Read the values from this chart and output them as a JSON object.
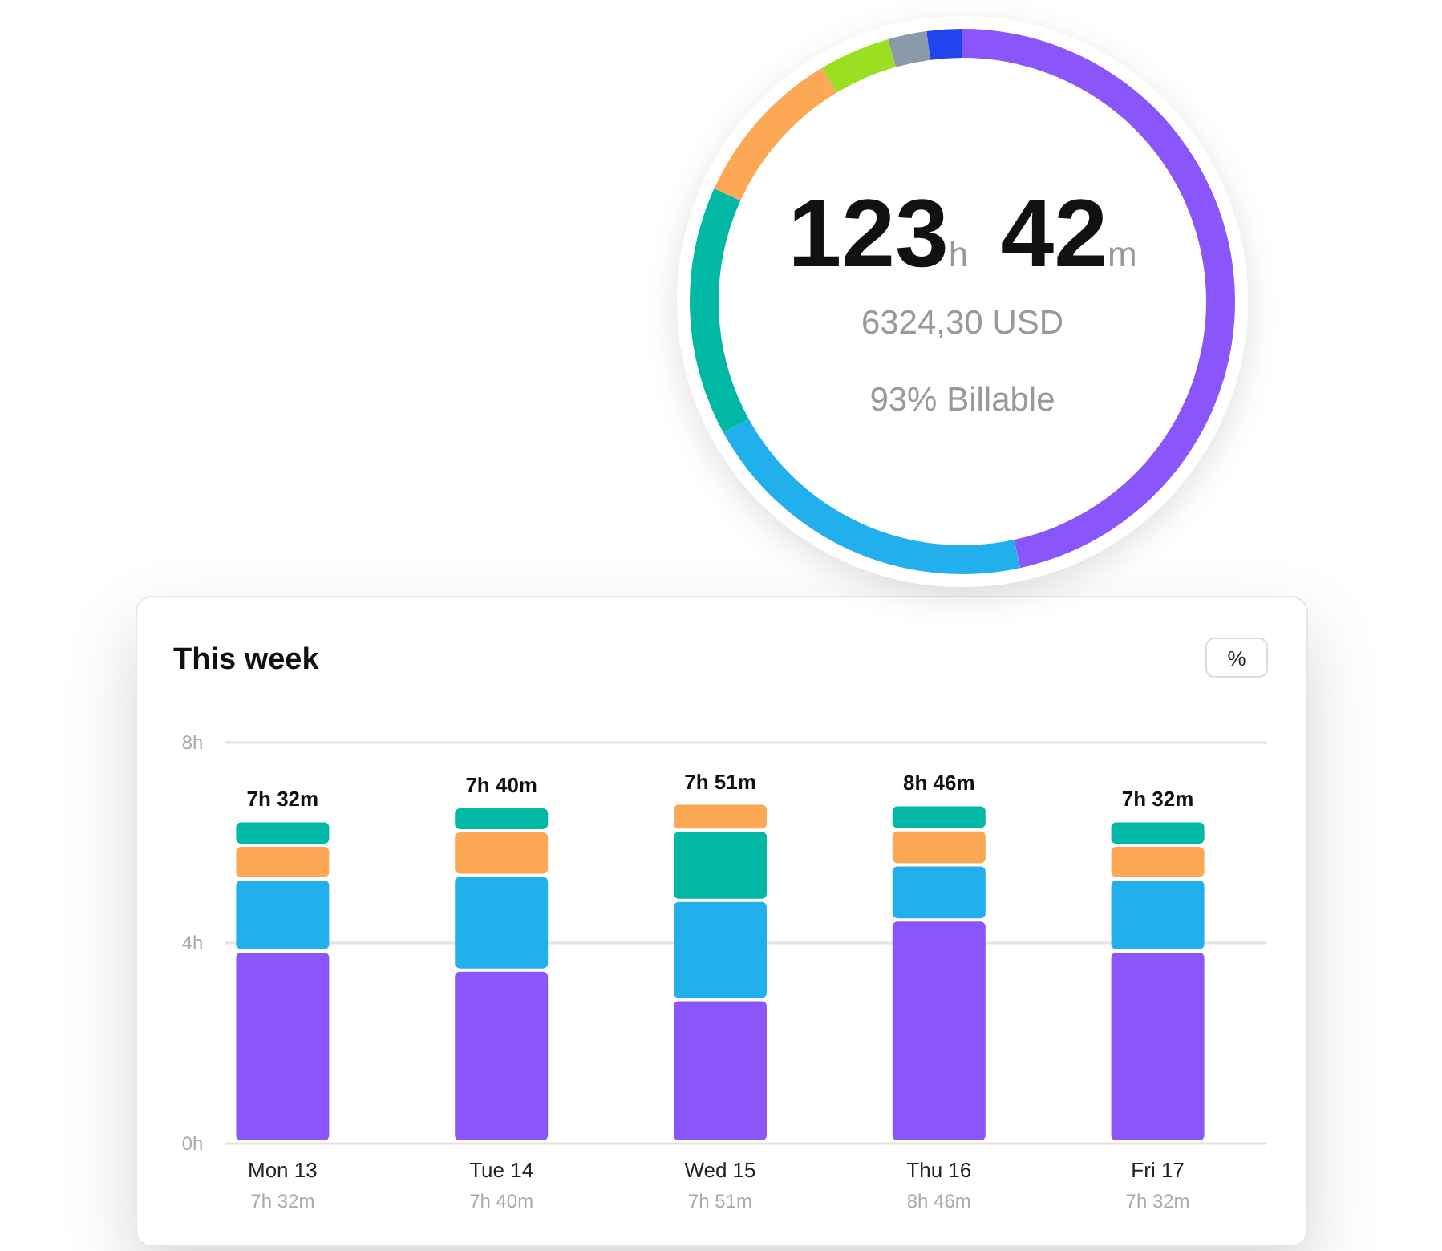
{
  "chart_data": [
    {
      "type": "donut",
      "title": "123h 42m",
      "subtitle": "6324,30 USD",
      "annotations": [
        "93% Billable"
      ],
      "categories": [
        null,
        null,
        null,
        null,
        null,
        null,
        null
      ],
      "values": [
        46.6,
        20.4,
        14.8,
        9.6,
        4.2,
        2.3,
        2.1
      ],
      "colors": [
        "#8b55fc",
        "#22b0ec",
        "#00b8a4",
        "#fca854",
        "#9adf22",
        "#8a9aa8",
        "#2244ee"
      ]
    },
    {
      "type": "bar",
      "title": "This week",
      "stacked": true,
      "categories": [
        "Mon 13",
        "Tue 14",
        "Wed 15",
        "Thu 16",
        "Fri 17"
      ],
      "series": [
        {
          "color": "#8b55fc",
          "values": [
            3.81,
            3.43,
            2.84,
            4.43,
            3.81
          ]
        },
        {
          "color": "#22b0ec",
          "values": [
            1.44,
            1.89,
            1.98,
            1.1,
            1.44
          ]
        },
        {
          "color": "#00b8a4",
          "values": [
            null,
            null,
            1.4,
            null,
            null
          ]
        },
        {
          "color": "#fca854",
          "values": [
            0.67,
            0.89,
            0.54,
            0.7,
            0.67
          ]
        },
        {
          "color": "#00b8a4",
          "values": [
            0.49,
            0.48,
            null,
            0.5,
            0.49
          ]
        }
      ],
      "totals": [
        "7h 32m",
        "7h 40m",
        "7h 51m",
        "8h 46m",
        "7h 32m"
      ],
      "ylim": [
        0,
        8
      ],
      "yticks": [
        {
          "value": 0,
          "label": "0h"
        },
        {
          "value": 4,
          "label": "4h"
        },
        {
          "value": 8,
          "label": "8h"
        }
      ],
      "grid": "y",
      "annotations": [
        "7h 32m",
        "7h 40m",
        "7h 51m",
        "8h 46m",
        "7h 32m",
        "%"
      ]
    }
  ]
}
